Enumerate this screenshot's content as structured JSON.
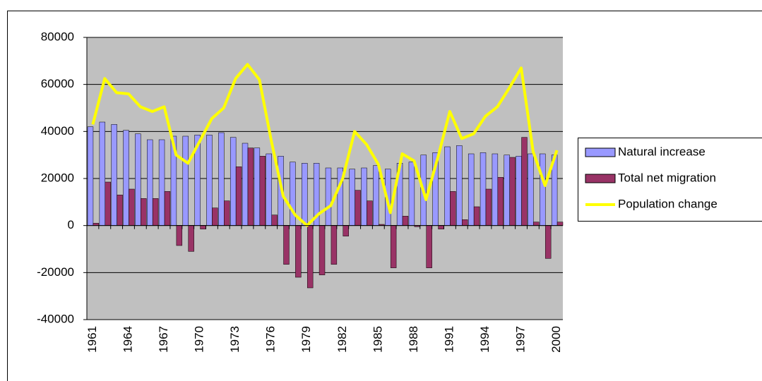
{
  "chart_data": {
    "type": "bar-line",
    "categories": [
      "1961",
      null,
      null,
      "1964",
      null,
      null,
      "1967",
      null,
      null,
      "1970",
      null,
      null,
      "1973",
      null,
      null,
      "1976",
      null,
      null,
      "1979",
      null,
      null,
      "1982",
      null,
      null,
      "1985",
      null,
      null,
      "1988",
      null,
      null,
      "1991",
      null,
      null,
      "1994",
      null,
      null,
      "1997",
      null,
      null,
      "2000"
    ],
    "series": [
      {
        "name": "Natural increase",
        "type": "bar",
        "color": "#9999ff",
        "values": [
          42000,
          44000,
          43000,
          40500,
          39000,
          36500,
          36500,
          38000,
          38000,
          38500,
          38500,
          39500,
          37500,
          35000,
          33000,
          30500,
          29500,
          27000,
          26500,
          26500,
          24500,
          24500,
          24000,
          24500,
          25500,
          24000,
          26500,
          27000,
          30000,
          31000,
          33500,
          34000,
          30500,
          31000,
          30500,
          30000,
          29500,
          30500,
          30500,
          30000
        ]
      },
      {
        "name": "Total net migration",
        "type": "bar",
        "color": "#993366",
        "values": [
          1000,
          18500,
          13000,
          15500,
          11500,
          11500,
          14500,
          -8500,
          -11000,
          -1500,
          7500,
          10500,
          25000,
          33000,
          29500,
          4500,
          -16500,
          -22000,
          -26500,
          -21000,
          -16500,
          -4500,
          15000,
          10500,
          500,
          -18000,
          4000,
          -500,
          -18000,
          -1500,
          14500,
          2500,
          8000,
          15500,
          20500,
          29000,
          37500,
          1500,
          -14000,
          1500
        ]
      },
      {
        "name": "Population change",
        "type": "line",
        "color": "#ffff00",
        "values": [
          43000,
          62500,
          56500,
          56000,
          50500,
          48500,
          50500,
          30000,
          26500,
          36000,
          45500,
          50000,
          62500,
          68500,
          62000,
          36000,
          12500,
          4500,
          0,
          5000,
          8500,
          20000,
          40000,
          34500,
          26000,
          5500,
          30500,
          27500,
          11000,
          29000,
          48500,
          37000,
          39000,
          46500,
          50500,
          58500,
          67000,
          31500,
          17000,
          32000
        ]
      }
    ],
    "ylim": [
      -40000,
      80000
    ],
    "yticks": [
      -40000,
      -20000,
      0,
      20000,
      40000,
      60000,
      80000
    ],
    "grid": true,
    "legend": "right",
    "plot_background": "#c0c0c0"
  }
}
